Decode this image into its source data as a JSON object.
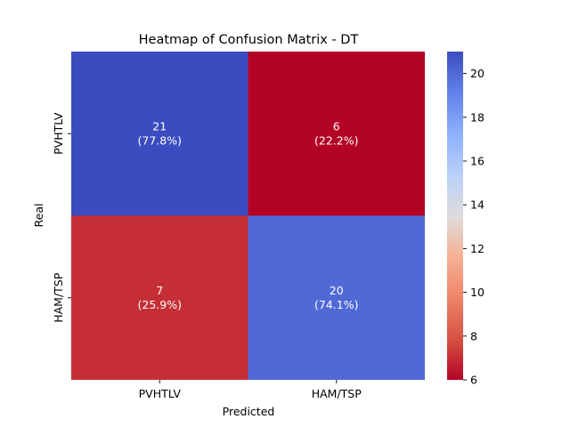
{
  "chart_data": {
    "type": "heatmap",
    "title": "Heatmap of Confusion Matrix - DT",
    "xlabel": "Predicted",
    "ylabel": "Real",
    "x_categories": [
      "PVHTLV",
      "HAM/TSP"
    ],
    "y_categories": [
      "PVHTLV",
      "HAM/TSP"
    ],
    "values": [
      [
        21,
        6
      ],
      [
        7,
        20
      ]
    ],
    "cell_labels": [
      [
        "21\n(77.8%)",
        "6\n(22.2%)"
      ],
      [
        "7\n(25.9%)",
        "20\n(74.1%)"
      ]
    ],
    "colormap": "coolwarm_r",
    "colorbar_range": [
      6,
      21
    ],
    "colorbar_ticks": [
      "6",
      "8",
      "10",
      "12",
      "14",
      "16",
      "18",
      "20"
    ],
    "colors": {
      "high": "#3b4cc0",
      "mid": "#dddddd",
      "low": "#b40426"
    }
  }
}
